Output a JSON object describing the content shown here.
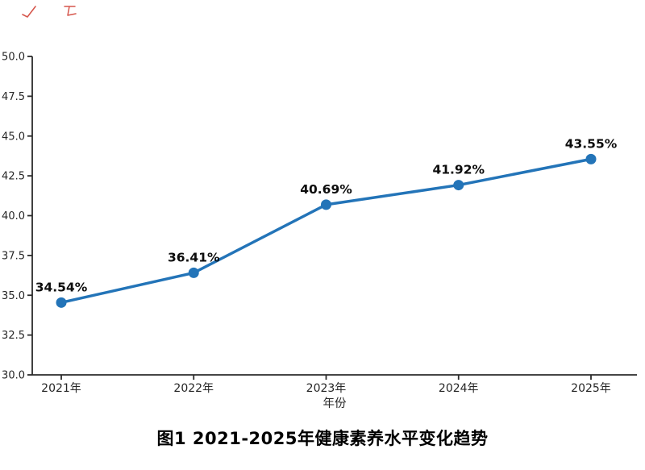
{
  "page": {
    "background": "#ffffff"
  },
  "annotations": {
    "color": "#cf3a2e",
    "description-marks": [
      "small-red-scribble-left",
      "small-red-scribble-right"
    ]
  },
  "chart_data": {
    "type": "line",
    "categories": [
      "2021年",
      "2022年",
      "2023年",
      "2024年",
      "2025年"
    ],
    "values": [
      34.54,
      36.41,
      40.69,
      41.92,
      43.55
    ],
    "point_labels": [
      "34.54%",
      "36.41%",
      "40.69%",
      "41.92%",
      "43.55%"
    ],
    "title": "图1 2021-2025年健康素养水平变化趋势",
    "xlabel": "年份",
    "ylabel": "",
    "ylim": [
      30.0,
      50.0
    ],
    "ytick_step": 2.5,
    "yticks": [
      "30.0",
      "32.5",
      "35.0",
      "37.5",
      "40.0",
      "42.5",
      "45.0",
      "47.5",
      "50.0"
    ],
    "grid": false,
    "legend_position": "none",
    "line_color": "#2374b8",
    "marker_color": "#2374b8",
    "axis_color": "#2b2b2b",
    "tick_label_color": "#262626",
    "data_label_color": "#0d0d0d",
    "marker": "circle"
  }
}
